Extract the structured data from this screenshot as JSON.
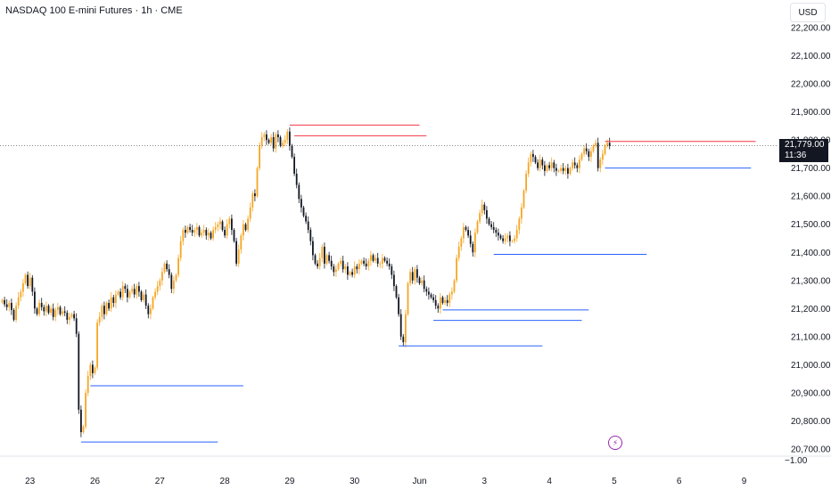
{
  "header": {
    "title": "NASDAQ 100 E-mini Futures · 1h · CME",
    "currency": "USD"
  },
  "price_badge": {
    "price": "21,779.00",
    "countdown": "11:36"
  },
  "colors": {
    "up": "#f5a623",
    "down": "#131722",
    "resistance": "#f23645",
    "support": "#2962ff",
    "axis_text": "#131722",
    "bolt": "#9c27b0"
  },
  "chart_data": {
    "type": "candlestick",
    "title": "NASDAQ 100 E-mini Futures · 1h · CME",
    "y_axis": {
      "min": 20690,
      "max": 22270,
      "ticks": [
        22200,
        22100,
        22000,
        21900,
        21800,
        21700,
        21600,
        21500,
        21400,
        21300,
        21200,
        21100,
        21000,
        20900,
        20800,
        20700
      ],
      "tick_labels": [
        "22,200.00",
        "22,100.00",
        "22,000.00",
        "21,900.00",
        "21,800.00",
        "21,700.00",
        "21,600.00",
        "21,500.00",
        "21,400.00",
        "21,300.00",
        "21,200.00",
        "21,100.00",
        "21,000.00",
        "20,900.00",
        "20,800.00",
        "20,700.00"
      ],
      "extra_label": "−1.00"
    },
    "x_axis": {
      "labels": [
        "23",
        "26",
        "27",
        "28",
        "29",
        "30",
        "Jun",
        "3",
        "4",
        "5",
        "6",
        "9"
      ],
      "label_bar_index": [
        12,
        40,
        68,
        96,
        124,
        152,
        180,
        208,
        236,
        264,
        292,
        320
      ]
    },
    "last_price": 21779,
    "closes": [
      21230,
      21215,
      21205,
      21220,
      21195,
      21160,
      21210,
      21240,
      21260,
      21290,
      21320,
      21280,
      21310,
      21260,
      21200,
      21180,
      21220,
      21205,
      21190,
      21210,
      21185,
      21200,
      21170,
      21195,
      21205,
      21180,
      21190,
      21185,
      21160,
      21170,
      21180,
      21165,
      21110,
      20840,
      20760,
      20780,
      20900,
      20960,
      21000,
      20970,
      20990,
      21150,
      21170,
      21210,
      21180,
      21220,
      21200,
      21240,
      21220,
      21250,
      21260,
      21240,
      21280,
      21270,
      21240,
      21260,
      21270,
      21250,
      21280,
      21260,
      21230,
      21250,
      21210,
      21180,
      21200,
      21240,
      21260,
      21280,
      21300,
      21330,
      21360,
      21340,
      21320,
      21270,
      21300,
      21320,
      21380,
      21440,
      21480,
      21470,
      21490,
      21480,
      21470,
      21480,
      21490,
      21460,
      21470,
      21480,
      21460,
      21470,
      21450,
      21480,
      21490,
      21500,
      21510,
      21480,
      21460,
      21500,
      21520,
      21480,
      21440,
      21360,
      21410,
      21460,
      21500,
      21480,
      21520,
      21560,
      21610,
      21600,
      21700,
      21780,
      21810,
      21820,
      21800,
      21790,
      21810,
      21770,
      21820,
      21810,
      21780,
      21790,
      21800,
      21830,
      21780,
      21740,
      21680,
      21640,
      21590,
      21560,
      21530,
      21510,
      21480,
      21440,
      21390,
      21360,
      21350,
      21380,
      21420,
      21360,
      21390,
      21370,
      21350,
      21330,
      21340,
      21360,
      21370,
      21340,
      21350,
      21320,
      21330,
      21320,
      21350,
      21340,
      21360,
      21370,
      21360,
      21350,
      21370,
      21390,
      21370,
      21380,
      21360,
      21360,
      21380,
      21370,
      21360,
      21350,
      21320,
      21280,
      21240,
      21180,
      21100,
      21080,
      21180,
      21290,
      21330,
      21300,
      21340,
      21310,
      21290,
      21300,
      21270,
      21260,
      21250,
      21240,
      21230,
      21210,
      21200,
      21240,
      21220,
      21230,
      21220,
      21250,
      21260,
      21300,
      21380,
      21420,
      21450,
      21490,
      21480,
      21460,
      21430,
      21400,
      21470,
      21510,
      21540,
      21570,
      21550,
      21520,
      21500,
      21490,
      21480,
      21470,
      21460,
      21450,
      21440,
      21450,
      21460,
      21440,
      21440,
      21450,
      21480,
      21520,
      21560,
      21620,
      21680,
      21720,
      21750,
      21740,
      21720,
      21700,
      21730,
      21710,
      21690,
      21710,
      21700,
      21720,
      21700,
      21690,
      21690,
      21700,
      21690,
      21700,
      21680,
      21700,
      21720,
      21710,
      21700,
      21730,
      21750,
      21770,
      21760,
      21740,
      21760,
      21780,
      21790,
      21700,
      21730,
      21750,
      21780,
      21790,
      21779
    ],
    "levels": [
      {
        "type": "resistance",
        "price": 21853,
        "from_bar": 124,
        "to_bar": 180
      },
      {
        "type": "resistance",
        "price": 21815,
        "from_bar": 126,
        "to_bar": 183
      },
      {
        "type": "resistance",
        "price": 21795,
        "from_bar": 260,
        "to_bar": 325
      },
      {
        "type": "support",
        "price": 21700,
        "from_bar": 260,
        "to_bar": 323
      },
      {
        "type": "support",
        "price": 21393,
        "from_bar": 212,
        "to_bar": 278
      },
      {
        "type": "support",
        "price": 21195,
        "from_bar": 190,
        "to_bar": 253
      },
      {
        "type": "support",
        "price": 21158,
        "from_bar": 186,
        "to_bar": 250
      },
      {
        "type": "support",
        "price": 21067,
        "from_bar": 171,
        "to_bar": 233
      },
      {
        "type": "support",
        "price": 20925,
        "from_bar": 38,
        "to_bar": 104
      },
      {
        "type": "support",
        "price": 20725,
        "from_bar": 34,
        "to_bar": 93
      }
    ]
  }
}
